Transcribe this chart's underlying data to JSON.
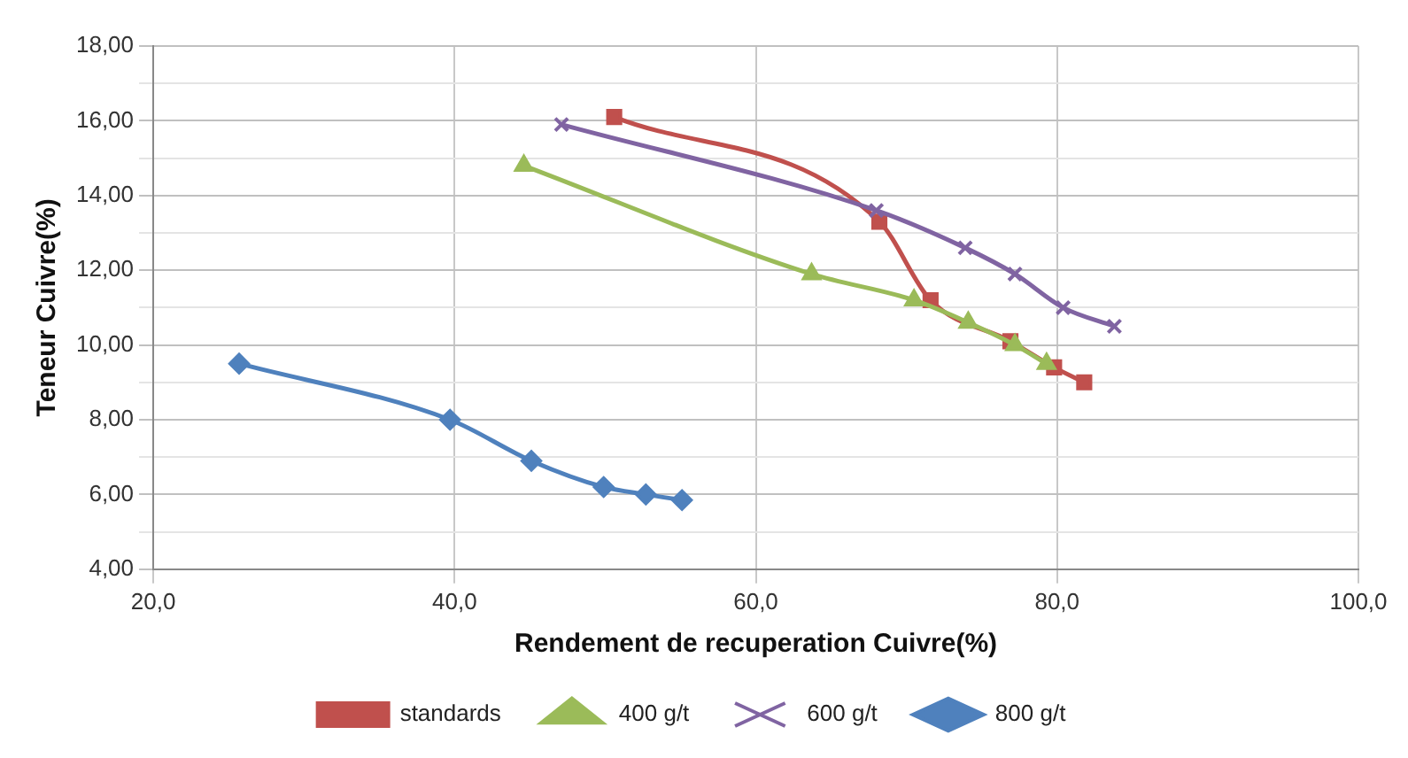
{
  "chart_data": {
    "type": "line",
    "xlabel": "Rendement de recuperation Cuivre(%)",
    "ylabel": "Teneur Cuivre(%)",
    "xlim": [
      20,
      100
    ],
    "xticks": [
      {
        "value": 20,
        "label": "20,0"
      },
      {
        "value": 40,
        "label": "40,0"
      },
      {
        "value": 60,
        "label": "60,0"
      },
      {
        "value": 80,
        "label": "80,0"
      },
      {
        "value": 100,
        "label": "100,0"
      }
    ],
    "ylim": [
      4,
      18
    ],
    "yticks": [
      {
        "value": 4,
        "label": "4,00"
      },
      {
        "value": 5,
        "label": null
      },
      {
        "value": 6,
        "label": "6,00"
      },
      {
        "value": 7,
        "label": null
      },
      {
        "value": 8,
        "label": "8,00"
      },
      {
        "value": 9,
        "label": null
      },
      {
        "value": 10,
        "label": "10,00"
      },
      {
        "value": 11,
        "label": null
      },
      {
        "value": 12,
        "label": "12,00"
      },
      {
        "value": 13,
        "label": null
      },
      {
        "value": 14,
        "label": "14,00"
      },
      {
        "value": 15,
        "label": null
      },
      {
        "value": 16,
        "label": "16,00"
      },
      {
        "value": 17,
        "label": null
      },
      {
        "value": 18,
        "label": "18,00"
      }
    ],
    "grid": true,
    "legend": "bottom",
    "series": [
      {
        "name": "standards",
        "color": "#c0504d",
        "marker": "square",
        "x": [
          50.6,
          68.2,
          71.6,
          76.9,
          79.8,
          81.8
        ],
        "values": [
          16.1,
          13.3,
          11.2,
          10.1,
          9.4,
          9.0
        ]
      },
      {
        "name": "400 g/t",
        "color": "#9bbb59",
        "marker": "triangle",
        "x": [
          44.6,
          63.7,
          70.5,
          74.1,
          77.2,
          79.3
        ],
        "values": [
          14.8,
          11.9,
          11.2,
          10.6,
          10.0,
          9.5
        ]
      },
      {
        "name": "600 g/t",
        "color": "#8064a2",
        "marker": "cross",
        "x": [
          47.1,
          68.0,
          73.9,
          77.2,
          80.4,
          83.8
        ],
        "values": [
          15.9,
          13.6,
          12.6,
          11.9,
          11.0,
          10.5
        ]
      },
      {
        "name": "800 g/t",
        "color": "#4f81bd",
        "marker": "diamond",
        "x": [
          25.7,
          39.7,
          45.1,
          49.9,
          52.7,
          55.1
        ],
        "values": [
          9.5,
          8.0,
          6.9,
          6.2,
          6.0,
          5.85
        ]
      }
    ]
  }
}
